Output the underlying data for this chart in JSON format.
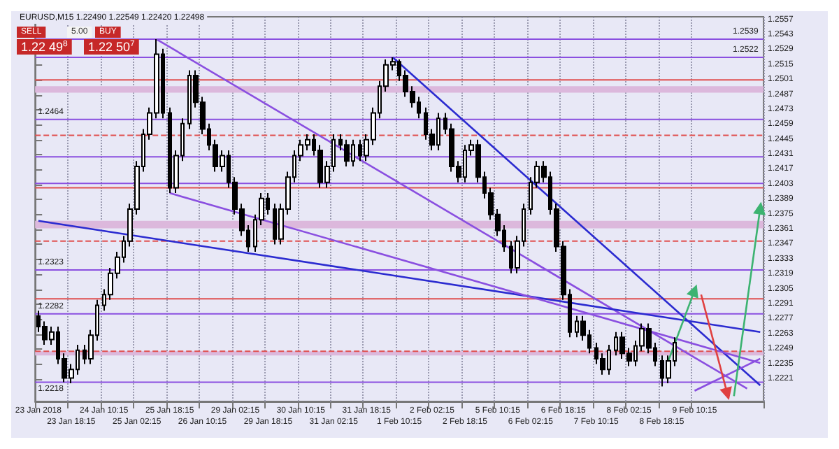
{
  "chart_data": {
    "type": "candlestick",
    "title": "EURUSD,M15 1.22490 1.22549 1.22420 1.22498",
    "annotations": [
      "SELL",
      "5.00",
      "BUY",
      "1.22 49$^{8}$",
      "1.22 50$^{7}$"
    ],
    "color": "#000000",
    "grid": "x",
    "categories": [
      "23 Jan 2018",
      null,
      null,
      null,
      null,
      "23 Jan 18:15",
      null,
      null,
      null,
      null,
      "24 Jan 10:15",
      null,
      null,
      null,
      null,
      "25 Jan 02:15",
      null,
      null,
      null,
      null,
      "25 Jan 18:15",
      null,
      null,
      null,
      null,
      "26 Jan 10:15",
      null,
      null,
      null,
      null,
      "29 Jan 02:15",
      null,
      null,
      null,
      null,
      "29 Jan 18:15",
      null,
      null,
      null,
      null,
      "30 Jan 10:15",
      null,
      null,
      null,
      null,
      "31 Jan 02:15",
      null,
      null,
      null,
      null,
      "31 Jan 18:15",
      null,
      null,
      null,
      null,
      "1 Feb 10:15",
      null,
      null,
      null,
      null,
      "2 Feb 02:15",
      null,
      null,
      null,
      null,
      "2 Feb 18:15",
      null,
      null,
      null,
      null,
      "5 Feb 10:15",
      null,
      null,
      null,
      null,
      "6 Feb 02:15",
      null,
      null,
      null,
      null,
      "6 Feb 18:15",
      null,
      null,
      null,
      null,
      "7 Feb 10:15",
      null,
      null,
      null,
      null,
      "8 Feb 02:15",
      null,
      null,
      null,
      null,
      "8 Feb 18:15",
      null,
      null,
      null,
      null,
      "9 Feb 10:15",
      null,
      null,
      null,
      null,
      null,
      null,
      null,
      null,
      null,
      null
    ],
    "ohlc": [
      [
        1.228,
        1.2285,
        1.2265,
        1.227
      ],
      [
        1.227,
        1.2275,
        1.2253,
        1.2258
      ],
      [
        1.2258,
        1.227,
        1.2253,
        1.2265
      ],
      [
        1.2265,
        1.227,
        1.2235,
        1.224
      ],
      [
        1.224,
        1.2245,
        1.2218,
        1.2222
      ],
      [
        1.2222,
        1.2235,
        1.2217,
        1.223
      ],
      [
        1.223,
        1.2253,
        1.2225,
        1.2248
      ],
      [
        1.2248,
        1.2253,
        1.2235,
        1.224
      ],
      [
        1.224,
        1.2267,
        1.2235,
        1.2262
      ],
      [
        1.2262,
        1.2295,
        1.2257,
        1.229
      ],
      [
        1.229,
        1.2305,
        1.2285,
        1.23
      ],
      [
        1.23,
        1.2325,
        1.2295,
        1.232
      ],
      [
        1.232,
        1.234,
        1.2315,
        1.2335
      ],
      [
        1.2335,
        1.2355,
        1.233,
        1.235
      ],
      [
        1.235,
        1.2385,
        1.2345,
        1.238
      ],
      [
        1.238,
        1.2425,
        1.2375,
        1.242
      ],
      [
        1.242,
        1.2455,
        1.2415,
        1.245
      ],
      [
        1.245,
        1.2475,
        1.2445,
        1.247
      ],
      [
        1.247,
        1.2539,
        1.2465,
        1.2525
      ],
      [
        1.2525,
        1.253,
        1.2465,
        1.247
      ],
      [
        1.247,
        1.2475,
        1.2395,
        1.24
      ],
      [
        1.24,
        1.2435,
        1.2395,
        1.243
      ],
      [
        1.243,
        1.2465,
        1.2425,
        1.246
      ],
      [
        1.246,
        1.251,
        1.2455,
        1.2505
      ],
      [
        1.2505,
        1.251,
        1.2475,
        1.248
      ],
      [
        1.248,
        1.2485,
        1.245,
        1.2455
      ],
      [
        1.2455,
        1.246,
        1.2435,
        1.244
      ],
      [
        1.244,
        1.2445,
        1.2415,
        1.242
      ],
      [
        1.242,
        1.2435,
        1.2415,
        1.243
      ],
      [
        1.243,
        1.2435,
        1.24,
        1.2405
      ],
      [
        1.2405,
        1.241,
        1.2375,
        1.238
      ],
      [
        1.238,
        1.2385,
        1.2355,
        1.236
      ],
      [
        1.236,
        1.2365,
        1.234,
        1.2345
      ],
      [
        1.2345,
        1.2375,
        1.234,
        1.237
      ],
      [
        1.237,
        1.2395,
        1.2365,
        1.239
      ],
      [
        1.239,
        1.2395,
        1.2375,
        1.238
      ],
      [
        1.238,
        1.2385,
        1.2347,
        1.2352
      ],
      [
        1.2352,
        1.2385,
        1.2347,
        1.238
      ],
      [
        1.238,
        1.2415,
        1.2375,
        1.241
      ],
      [
        1.241,
        1.2435,
        1.2405,
        1.243
      ],
      [
        1.243,
        1.2445,
        1.2425,
        1.244
      ],
      [
        1.244,
        1.245,
        1.2435,
        1.2445
      ],
      [
        1.2445,
        1.245,
        1.243,
        1.2435
      ],
      [
        1.2435,
        1.244,
        1.24,
        1.2405
      ],
      [
        1.2405,
        1.2425,
        1.24,
        1.242
      ],
      [
        1.242,
        1.245,
        1.2415,
        1.2445
      ],
      [
        1.2445,
        1.245,
        1.2435,
        1.244
      ],
      [
        1.244,
        1.2445,
        1.242,
        1.2425
      ],
      [
        1.2425,
        1.2445,
        1.242,
        1.244
      ],
      [
        1.244,
        1.2445,
        1.2425,
        1.243
      ],
      [
        1.243,
        1.245,
        1.2425,
        1.2445
      ],
      [
        1.2445,
        1.2475,
        1.244,
        1.247
      ],
      [
        1.247,
        1.25,
        1.2465,
        1.2495
      ],
      [
        1.2495,
        1.252,
        1.249,
        1.2515
      ],
      [
        1.2515,
        1.2522,
        1.251,
        1.2518
      ],
      [
        1.2518,
        1.252,
        1.25,
        1.2505
      ],
      [
        1.2505,
        1.251,
        1.2485,
        1.249
      ],
      [
        1.249,
        1.2495,
        1.2475,
        1.248
      ],
      [
        1.248,
        1.2485,
        1.2465,
        1.247
      ],
      [
        1.247,
        1.2475,
        1.2445,
        1.245
      ],
      [
        1.245,
        1.2455,
        1.2435,
        1.244
      ],
      [
        1.244,
        1.247,
        1.2435,
        1.2465
      ],
      [
        1.2465,
        1.247,
        1.245,
        1.2455
      ],
      [
        1.2455,
        1.246,
        1.2415,
        1.242
      ],
      [
        1.242,
        1.2425,
        1.2405,
        1.241
      ],
      [
        1.241,
        1.244,
        1.2405,
        1.2435
      ],
      [
        1.2435,
        1.2445,
        1.243,
        1.244
      ],
      [
        1.244,
        1.2445,
        1.2405,
        1.241
      ],
      [
        1.241,
        1.2415,
        1.239,
        1.2395
      ],
      [
        1.2395,
        1.24,
        1.237,
        1.2375
      ],
      [
        1.2375,
        1.238,
        1.2355,
        1.236
      ],
      [
        1.236,
        1.2365,
        1.234,
        1.2345
      ],
      [
        1.2345,
        1.235,
        1.232,
        1.2325
      ],
      [
        1.2325,
        1.2355,
        1.232,
        1.235
      ],
      [
        1.235,
        1.2385,
        1.2345,
        1.238
      ],
      [
        1.238,
        1.241,
        1.2375,
        1.2405
      ],
      [
        1.2405,
        1.2425,
        1.24,
        1.242
      ],
      [
        1.242,
        1.2425,
        1.2405,
        1.241
      ],
      [
        1.241,
        1.2415,
        1.2375,
        1.238
      ],
      [
        1.238,
        1.2385,
        1.234,
        1.2345
      ],
      [
        1.2345,
        1.235,
        1.2295,
        1.23
      ],
      [
        1.23,
        1.2305,
        1.226,
        1.2265
      ],
      [
        1.2265,
        1.228,
        1.226,
        1.2275
      ],
      [
        1.2275,
        1.228,
        1.2257,
        1.2262
      ],
      [
        1.2262,
        1.2267,
        1.2245,
        1.225
      ],
      [
        1.225,
        1.2255,
        1.2235,
        1.224
      ],
      [
        1.224,
        1.2245,
        1.2225,
        1.223
      ],
      [
        1.223,
        1.2253,
        1.2225,
        1.2248
      ],
      [
        1.2248,
        1.2265,
        1.2243,
        1.226
      ],
      [
        1.226,
        1.2265,
        1.224,
        1.2245
      ],
      [
        1.2245,
        1.225,
        1.2233,
        1.2238
      ],
      [
        1.2238,
        1.2257,
        1.2233,
        1.2252
      ],
      [
        1.2252,
        1.2273,
        1.2247,
        1.2268
      ],
      [
        1.2268,
        1.2273,
        1.2245,
        1.225
      ],
      [
        1.225,
        1.2255,
        1.2233,
        1.2238
      ],
      [
        1.2238,
        1.2243,
        1.2214,
        1.2222
      ],
      [
        1.2222,
        1.2243,
        1.2217,
        1.2238
      ],
      [
        1.2238,
        1.226,
        1.2233,
        1.2255
      ],
      null,
      null,
      null,
      null,
      null,
      null,
      null,
      null,
      null,
      null,
      null,
      null,
      null
    ],
    "series": [
      {
        "type": "line",
        "color": "#8a4fe0",
        "marker": "none",
        "values": [
          null,
          null,
          null,
          null,
          null,
          null,
          null,
          null,
          null,
          null,
          null,
          null,
          null,
          null,
          null,
          null,
          null,
          null,
          1.2539,
          null,
          null,
          null,
          null,
          null,
          null,
          null,
          null,
          null,
          null,
          null,
          null,
          null,
          null,
          null,
          null,
          null,
          null,
          null,
          null,
          null,
          null,
          null,
          null,
          null,
          null,
          null,
          null,
          null,
          null,
          null,
          null,
          null,
          null,
          null,
          null,
          null,
          null,
          null,
          null,
          null,
          null,
          null,
          null,
          null,
          null,
          null,
          null,
          null,
          null,
          null,
          null,
          null,
          null,
          null,
          null,
          null,
          null,
          null,
          null,
          null,
          null,
          null,
          null,
          null,
          null,
          null,
          null,
          null,
          null,
          null,
          null,
          null,
          null,
          null,
          null,
          null,
          null,
          null,
          null,
          null,
          null,
          null,
          null,
          null,
          null,
          null,
          null,
          null,
          1.2212,
          null,
          null
        ]
      },
      {
        "type": "line",
        "color": "#2b2bd0",
        "marker": "none",
        "values": [
          null,
          null,
          null,
          null,
          null,
          null,
          null,
          null,
          null,
          null,
          null,
          null,
          null,
          null,
          null,
          null,
          null,
          null,
          null,
          null,
          null,
          null,
          null,
          null,
          null,
          null,
          null,
          null,
          null,
          null,
          null,
          null,
          null,
          null,
          null,
          null,
          null,
          null,
          null,
          null,
          null,
          null,
          null,
          null,
          null,
          null,
          null,
          null,
          null,
          null,
          null,
          null,
          null,
          null,
          1.2522,
          null,
          null,
          null,
          null,
          null,
          null,
          null,
          null,
          null,
          null,
          null,
          null,
          null,
          null,
          null,
          null,
          null,
          null,
          null,
          null,
          null,
          null,
          null,
          null,
          null,
          null,
          null,
          null,
          null,
          null,
          null,
          null,
          null,
          null,
          null,
          null,
          null,
          null,
          null,
          null,
          null,
          null,
          null,
          null,
          null,
          null,
          null,
          null,
          null,
          null,
          null,
          null,
          null,
          null,
          null,
          1.2215
        ]
      },
      {
        "type": "line",
        "color": "#2b2bd0",
        "marker": "none",
        "values": [
          1.2369,
          null,
          null,
          null,
          null,
          null,
          null,
          null,
          null,
          null,
          null,
          null,
          null,
          null,
          null,
          null,
          null,
          null,
          null,
          null,
          null,
          null,
          null,
          null,
          null,
          null,
          null,
          null,
          null,
          null,
          null,
          null,
          null,
          null,
          null,
          null,
          null,
          null,
          null,
          null,
          null,
          null,
          null,
          null,
          null,
          null,
          null,
          null,
          null,
          null,
          null,
          null,
          null,
          null,
          null,
          null,
          null,
          null,
          null,
          null,
          null,
          null,
          null,
          null,
          null,
          null,
          null,
          null,
          null,
          null,
          null,
          null,
          null,
          null,
          null,
          null,
          null,
          null,
          null,
          null,
          null,
          null,
          null,
          null,
          null,
          null,
          null,
          null,
          null,
          null,
          null,
          null,
          null,
          null,
          null,
          null,
          null,
          null,
          null,
          null,
          null,
          null,
          null,
          null,
          null,
          null,
          null,
          null,
          null,
          null,
          1.2265
        ]
      },
      {
        "type": "line",
        "color": "#8a4fe0",
        "marker": "none",
        "values": [
          null,
          null,
          null,
          null,
          null,
          null,
          null,
          null,
          null,
          null,
          null,
          null,
          null,
          null,
          null,
          null,
          null,
          null,
          null,
          null,
          1.2395,
          null,
          null,
          null,
          null,
          null,
          null,
          null,
          null,
          null,
          null,
          null,
          null,
          null,
          null,
          null,
          null,
          null,
          null,
          null,
          null,
          null,
          null,
          null,
          null,
          null,
          null,
          null,
          null,
          null,
          null,
          null,
          null,
          null,
          null,
          null,
          null,
          null,
          null,
          null,
          null,
          null,
          null,
          null,
          null,
          null,
          null,
          null,
          null,
          null,
          null,
          null,
          null,
          null,
          null,
          null,
          null,
          null,
          null,
          null,
          null,
          null,
          null,
          null,
          null,
          null,
          null,
          null,
          null,
          null,
          null,
          null,
          null,
          null,
          null,
          null,
          null,
          null,
          null,
          null,
          null,
          null,
          null,
          null,
          null,
          null,
          null,
          null,
          null,
          null,
          1.2236
        ]
      },
      {
        "type": "line",
        "color": "#8a4fe0",
        "marker": "none",
        "values": [
          null,
          null,
          null,
          null,
          null,
          null,
          null,
          null,
          null,
          null,
          null,
          null,
          null,
          null,
          null,
          null,
          null,
          null,
          null,
          null,
          null,
          null,
          null,
          null,
          null,
          null,
          null,
          null,
          null,
          null,
          null,
          null,
          null,
          null,
          null,
          null,
          null,
          null,
          null,
          null,
          null,
          null,
          null,
          null,
          null,
          null,
          null,
          null,
          null,
          null,
          null,
          null,
          null,
          null,
          null,
          null,
          null,
          null,
          null,
          null,
          null,
          null,
          null,
          null,
          null,
          null,
          null,
          null,
          null,
          null,
          null,
          null,
          null,
          null,
          null,
          null,
          null,
          null,
          null,
          null,
          null,
          null,
          null,
          null,
          null,
          null,
          null,
          null,
          null,
          null,
          null,
          null,
          null,
          null,
          null,
          null,
          null,
          null,
          null,
          null,
          1.221,
          null,
          null,
          null,
          null,
          null,
          null,
          null,
          null,
          null,
          1.224
        ]
      },
      {
        "type": "line",
        "color": "#3cb371",
        "marker": "triangle",
        "values": [
          null,
          null,
          null,
          null,
          null,
          null,
          null,
          null,
          null,
          null,
          null,
          null,
          null,
          null,
          null,
          null,
          null,
          null,
          null,
          null,
          null,
          null,
          null,
          null,
          null,
          null,
          null,
          null,
          null,
          null,
          null,
          null,
          null,
          null,
          null,
          null,
          null,
          null,
          null,
          null,
          null,
          null,
          null,
          null,
          null,
          null,
          null,
          null,
          null,
          null,
          null,
          null,
          null,
          null,
          null,
          null,
          null,
          null,
          null,
          null,
          null,
          null,
          null,
          null,
          null,
          null,
          null,
          null,
          null,
          null,
          null,
          null,
          null,
          null,
          null,
          null,
          null,
          null,
          null,
          null,
          null,
          null,
          null,
          null,
          null,
          null,
          null,
          null,
          null,
          null,
          null,
          null,
          null,
          null,
          null,
          null,
          1.2238,
          null,
          null,
          null,
          1.2304,
          null,
          null,
          null,
          null,
          null,
          null,
          null,
          null,
          null,
          null
        ]
      },
      {
        "type": "line",
        "color": "#3cb371",
        "marker": "triangle",
        "values": [
          null,
          null,
          null,
          null,
          null,
          null,
          null,
          null,
          null,
          null,
          null,
          null,
          null,
          null,
          null,
          null,
          null,
          null,
          null,
          null,
          null,
          null,
          null,
          null,
          null,
          null,
          null,
          null,
          null,
          null,
          null,
          null,
          null,
          null,
          null,
          null,
          null,
          null,
          null,
          null,
          null,
          null,
          null,
          null,
          null,
          null,
          null,
          null,
          null,
          null,
          null,
          null,
          null,
          null,
          null,
          null,
          null,
          null,
          null,
          null,
          null,
          null,
          null,
          null,
          null,
          null,
          null,
          null,
          null,
          null,
          null,
          null,
          null,
          null,
          null,
          null,
          null,
          null,
          null,
          null,
          null,
          null,
          null,
          null,
          null,
          null,
          null,
          null,
          null,
          null,
          null,
          null,
          null,
          null,
          null,
          null,
          null,
          null,
          null,
          null,
          null,
          null,
          null,
          null,
          null,
          null,
          1.2205,
          null,
          null,
          null,
          1.2381
        ]
      },
      {
        "type": "line",
        "color": "#e04040",
        "marker": "triangle",
        "values": [
          null,
          null,
          null,
          null,
          null,
          null,
          null,
          null,
          null,
          null,
          null,
          null,
          null,
          null,
          null,
          null,
          null,
          null,
          null,
          null,
          null,
          null,
          null,
          null,
          null,
          null,
          null,
          null,
          null,
          null,
          null,
          null,
          null,
          null,
          null,
          null,
          null,
          null,
          null,
          null,
          null,
          null,
          null,
          null,
          null,
          null,
          null,
          null,
          null,
          null,
          null,
          null,
          null,
          null,
          null,
          null,
          null,
          null,
          null,
          null,
          null,
          null,
          null,
          null,
          null,
          null,
          null,
          null,
          null,
          null,
          null,
          null,
          null,
          null,
          null,
          null,
          null,
          null,
          null,
          null,
          null,
          null,
          null,
          null,
          null,
          null,
          null,
          null,
          null,
          null,
          null,
          null,
          null,
          null,
          null,
          null,
          null,
          null,
          null,
          null,
          null,
          1.23,
          null,
          null,
          null,
          1.2207,
          null,
          null,
          null,
          null,
          null
        ]
      }
    ],
    "ylim": [
      1.22,
      1.256
    ],
    "yticks": [
      1.2221,
      1.2235,
      1.2249,
      1.2263,
      1.2277,
      1.2291,
      1.2305,
      1.2319,
      1.2333,
      1.2347,
      1.2361,
      1.2375,
      1.2389,
      1.2403,
      1.2417,
      1.2431,
      1.2445,
      1.2459,
      1.2473,
      1.2487,
      1.2501,
      1.2515,
      1.2529,
      1.2543,
      1.2557
    ],
    "ref_lines": [
      {
        "axis": "y",
        "value": 1.2539,
        "label": "1.2539",
        "color": "#8a4fe0",
        "line_style": "solid"
      },
      {
        "axis": "y",
        "value": 1.2522,
        "label": "1.2522",
        "color": "#8a4fe0",
        "line_style": "solid"
      },
      {
        "axis": "y",
        "value": 1.2501,
        "color": "#e05050",
        "line_style": "solid"
      },
      {
        "axis": "y",
        "value": 1.2464,
        "label": "1.2464",
        "color": "#8a4fe0",
        "line_style": "solid"
      },
      {
        "axis": "y",
        "value": 1.2449,
        "color": "#e05050",
        "line_style": "dashed"
      },
      {
        "axis": "y",
        "value": 1.2429,
        "color": "#8a4fe0",
        "line_style": "solid"
      },
      {
        "axis": "y",
        "value": 1.2404,
        "color": "#8a4fe0",
        "line_style": "solid"
      },
      {
        "axis": "y",
        "value": 1.24,
        "color": "#e05050",
        "line_style": "solid"
      },
      {
        "axis": "y",
        "value": 1.235,
        "color": "#e05050",
        "line_style": "dashed"
      },
      {
        "axis": "y",
        "value": 1.2323,
        "label": "1.2323",
        "color": "#8a4fe0",
        "line_style": "solid"
      },
      {
        "axis": "y",
        "value": 1.2296,
        "color": "#e05050",
        "line_style": "solid"
      },
      {
        "axis": "y",
        "value": 1.2282,
        "label": "1.2282",
        "color": "#8a4fe0",
        "line_style": "solid"
      },
      {
        "axis": "y",
        "value": 1.2247,
        "color": "#e05050",
        "line_style": "dashed"
      },
      {
        "axis": "y",
        "value": 1.2218,
        "label": "1.2218",
        "color": "#8a4fe0",
        "line_style": "solid"
      }
    ],
    "bands": [
      {
        "axis": "y",
        "from": 1.2489,
        "to": 1.2495,
        "color": "#dcb8dc"
      },
      {
        "axis": "y",
        "from": 1.2362,
        "to": 1.2369,
        "color": "#dcb8dc"
      },
      {
        "axis": "y",
        "from": 1.2243,
        "to": 1.2247,
        "color": "#dcb8dc"
      }
    ]
  }
}
